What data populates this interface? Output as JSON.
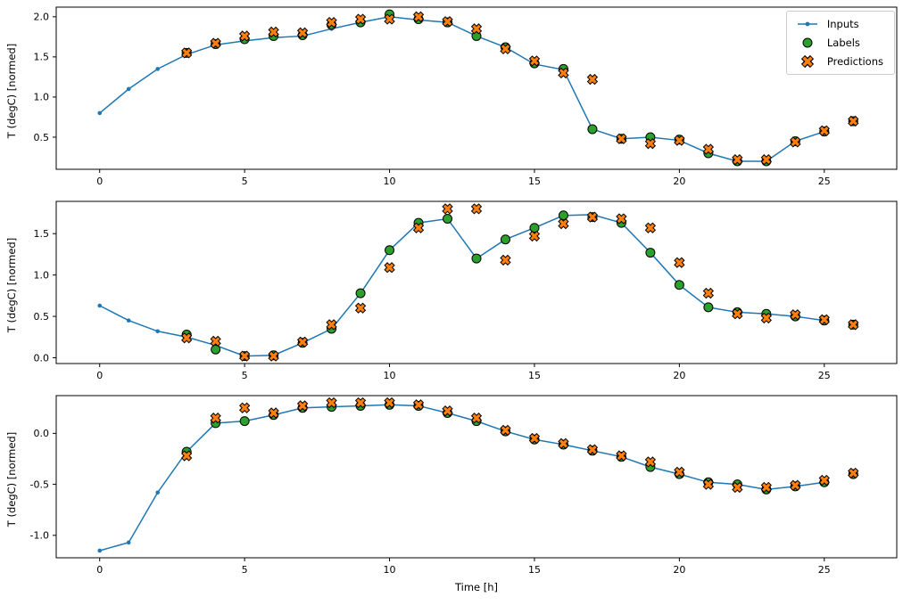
{
  "chart_data": {
    "type": "line",
    "title": "",
    "xlabel": "Time [h]",
    "ylabel": "T (degC) [normed]",
    "xlim": [
      -1.5,
      27.5
    ],
    "xticks": [
      0,
      5,
      10,
      15,
      20,
      25
    ],
    "legend": [
      "Inputs",
      "Labels",
      "Predictions"
    ],
    "legend_position": "upper right",
    "colors": {
      "inputs": "#1f77b4",
      "labels": "#2ca02c",
      "predictions": "#ff7f0e",
      "marker_edge": "#000000",
      "axes_edge": "#000000"
    },
    "x_inputs": [
      0,
      1,
      2,
      3,
      4,
      5,
      6,
      7,
      8,
      9,
      10,
      11,
      12,
      13,
      14,
      15,
      16,
      17,
      18,
      19,
      20,
      21,
      22,
      23,
      24,
      25
    ],
    "x_outputs": [
      3,
      4,
      5,
      6,
      7,
      8,
      9,
      10,
      11,
      12,
      13,
      14,
      15,
      16,
      17,
      18,
      19,
      20,
      21,
      22,
      23,
      24,
      25,
      26
    ],
    "subplots": [
      {
        "ylim": [
          0.1,
          2.12
        ],
        "yticks": [
          0.5,
          1.0,
          1.5,
          2.0
        ],
        "inputs": [
          0.8,
          1.1,
          1.35,
          1.53,
          1.65,
          1.7,
          1.74,
          1.76,
          1.85,
          1.93,
          2.0,
          1.96,
          1.93,
          1.76,
          1.62,
          1.41,
          1.34,
          0.6,
          0.48,
          0.5,
          0.46,
          0.3,
          0.2,
          0.2,
          0.45,
          0.57
        ],
        "labels": [
          1.55,
          1.66,
          1.72,
          1.76,
          1.77,
          1.9,
          1.93,
          2.03,
          1.97,
          1.93,
          1.76,
          1.62,
          1.42,
          1.35,
          0.6,
          0.48,
          0.5,
          0.47,
          0.3,
          0.2,
          0.2,
          0.45,
          0.57,
          0.7
        ],
        "predictions": [
          1.55,
          1.67,
          1.76,
          1.81,
          1.8,
          1.93,
          1.97,
          1.97,
          2.0,
          1.94,
          1.85,
          1.6,
          1.45,
          1.3,
          1.22,
          0.48,
          0.42,
          0.46,
          0.35,
          0.22,
          0.22,
          0.44,
          0.58,
          0.7
        ]
      },
      {
        "ylim": [
          -0.07,
          1.89
        ],
        "yticks": [
          0.0,
          0.5,
          1.0,
          1.5
        ],
        "inputs": [
          0.63,
          0.45,
          0.32,
          0.25,
          0.15,
          0.02,
          0.03,
          0.18,
          0.35,
          0.78,
          1.3,
          1.63,
          1.68,
          1.2,
          1.43,
          1.57,
          1.72,
          1.73,
          1.63,
          1.27,
          0.88,
          0.61,
          0.55,
          0.53,
          0.5,
          0.45
        ],
        "labels": [
          0.28,
          0.1,
          0.02,
          0.03,
          0.18,
          0.35,
          0.78,
          1.3,
          1.63,
          1.68,
          1.2,
          1.43,
          1.57,
          1.72,
          1.7,
          1.63,
          1.27,
          0.88,
          0.61,
          0.55,
          0.53,
          0.5,
          0.45,
          0.4
        ],
        "predictions": [
          0.24,
          0.2,
          0.02,
          0.02,
          0.19,
          0.4,
          0.6,
          1.09,
          1.57,
          1.8,
          1.8,
          1.18,
          1.47,
          1.62,
          1.7,
          1.68,
          1.57,
          1.15,
          0.78,
          0.53,
          0.48,
          0.52,
          0.46,
          0.4
        ]
      },
      {
        "ylim": [
          -1.22,
          0.37
        ],
        "yticks": [
          -1.0,
          -0.5,
          0.0
        ],
        "inputs": [
          -1.15,
          -1.07,
          -0.58,
          -0.18,
          0.1,
          0.12,
          0.18,
          0.25,
          0.26,
          0.27,
          0.28,
          0.27,
          0.2,
          0.12,
          0.02,
          -0.06,
          -0.11,
          -0.17,
          -0.23,
          -0.33,
          -0.4,
          -0.48,
          -0.5,
          -0.55,
          -0.52,
          -0.48
        ],
        "labels": [
          -0.18,
          0.1,
          0.12,
          0.18,
          0.25,
          0.26,
          0.27,
          0.28,
          0.27,
          0.2,
          0.12,
          0.02,
          -0.06,
          -0.11,
          -0.17,
          -0.23,
          -0.33,
          -0.4,
          -0.48,
          -0.5,
          -0.55,
          -0.52,
          -0.48,
          -0.4
        ],
        "predictions": [
          -0.22,
          0.15,
          0.25,
          0.2,
          0.27,
          0.3,
          0.3,
          0.3,
          0.28,
          0.22,
          0.15,
          0.03,
          -0.05,
          -0.1,
          -0.16,
          -0.22,
          -0.28,
          -0.38,
          -0.5,
          -0.53,
          -0.53,
          -0.51,
          -0.46,
          -0.39
        ]
      }
    ]
  }
}
